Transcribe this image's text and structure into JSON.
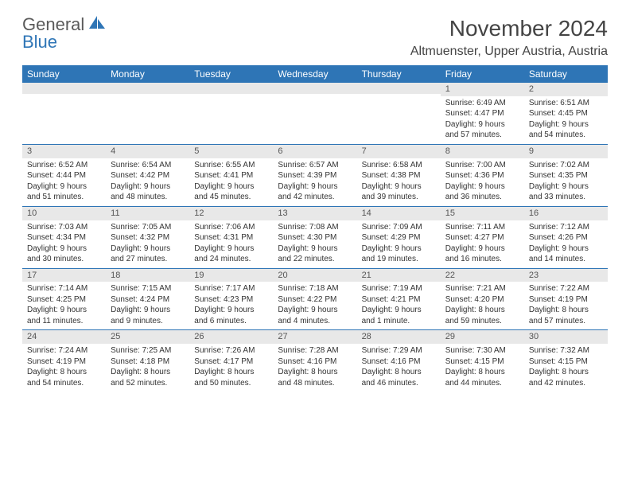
{
  "logo": {
    "top": "General",
    "bottom": "Blue",
    "shape_color": "#2e75b6"
  },
  "title": "November 2024",
  "location": "Altmuenster, Upper Austria, Austria",
  "colors": {
    "header_bg": "#2e75b6",
    "header_fg": "#ffffff",
    "daybar_bg": "#e8e8e8",
    "rule": "#2e75b6",
    "text": "#333333"
  },
  "weekdays": [
    "Sunday",
    "Monday",
    "Tuesday",
    "Wednesday",
    "Thursday",
    "Friday",
    "Saturday"
  ],
  "weeks": [
    [
      {
        "day": "",
        "lines": [
          "",
          "",
          "",
          ""
        ]
      },
      {
        "day": "",
        "lines": [
          "",
          "",
          "",
          ""
        ]
      },
      {
        "day": "",
        "lines": [
          "",
          "",
          "",
          ""
        ]
      },
      {
        "day": "",
        "lines": [
          "",
          "",
          "",
          ""
        ]
      },
      {
        "day": "",
        "lines": [
          "",
          "",
          "",
          ""
        ]
      },
      {
        "day": "1",
        "lines": [
          "Sunrise: 6:49 AM",
          "Sunset: 4:47 PM",
          "Daylight: 9 hours",
          "and 57 minutes."
        ]
      },
      {
        "day": "2",
        "lines": [
          "Sunrise: 6:51 AM",
          "Sunset: 4:45 PM",
          "Daylight: 9 hours",
          "and 54 minutes."
        ]
      }
    ],
    [
      {
        "day": "3",
        "lines": [
          "Sunrise: 6:52 AM",
          "Sunset: 4:44 PM",
          "Daylight: 9 hours",
          "and 51 minutes."
        ]
      },
      {
        "day": "4",
        "lines": [
          "Sunrise: 6:54 AM",
          "Sunset: 4:42 PM",
          "Daylight: 9 hours",
          "and 48 minutes."
        ]
      },
      {
        "day": "5",
        "lines": [
          "Sunrise: 6:55 AM",
          "Sunset: 4:41 PM",
          "Daylight: 9 hours",
          "and 45 minutes."
        ]
      },
      {
        "day": "6",
        "lines": [
          "Sunrise: 6:57 AM",
          "Sunset: 4:39 PM",
          "Daylight: 9 hours",
          "and 42 minutes."
        ]
      },
      {
        "day": "7",
        "lines": [
          "Sunrise: 6:58 AM",
          "Sunset: 4:38 PM",
          "Daylight: 9 hours",
          "and 39 minutes."
        ]
      },
      {
        "day": "8",
        "lines": [
          "Sunrise: 7:00 AM",
          "Sunset: 4:36 PM",
          "Daylight: 9 hours",
          "and 36 minutes."
        ]
      },
      {
        "day": "9",
        "lines": [
          "Sunrise: 7:02 AM",
          "Sunset: 4:35 PM",
          "Daylight: 9 hours",
          "and 33 minutes."
        ]
      }
    ],
    [
      {
        "day": "10",
        "lines": [
          "Sunrise: 7:03 AM",
          "Sunset: 4:34 PM",
          "Daylight: 9 hours",
          "and 30 minutes."
        ]
      },
      {
        "day": "11",
        "lines": [
          "Sunrise: 7:05 AM",
          "Sunset: 4:32 PM",
          "Daylight: 9 hours",
          "and 27 minutes."
        ]
      },
      {
        "day": "12",
        "lines": [
          "Sunrise: 7:06 AM",
          "Sunset: 4:31 PM",
          "Daylight: 9 hours",
          "and 24 minutes."
        ]
      },
      {
        "day": "13",
        "lines": [
          "Sunrise: 7:08 AM",
          "Sunset: 4:30 PM",
          "Daylight: 9 hours",
          "and 22 minutes."
        ]
      },
      {
        "day": "14",
        "lines": [
          "Sunrise: 7:09 AM",
          "Sunset: 4:29 PM",
          "Daylight: 9 hours",
          "and 19 minutes."
        ]
      },
      {
        "day": "15",
        "lines": [
          "Sunrise: 7:11 AM",
          "Sunset: 4:27 PM",
          "Daylight: 9 hours",
          "and 16 minutes."
        ]
      },
      {
        "day": "16",
        "lines": [
          "Sunrise: 7:12 AM",
          "Sunset: 4:26 PM",
          "Daylight: 9 hours",
          "and 14 minutes."
        ]
      }
    ],
    [
      {
        "day": "17",
        "lines": [
          "Sunrise: 7:14 AM",
          "Sunset: 4:25 PM",
          "Daylight: 9 hours",
          "and 11 minutes."
        ]
      },
      {
        "day": "18",
        "lines": [
          "Sunrise: 7:15 AM",
          "Sunset: 4:24 PM",
          "Daylight: 9 hours",
          "and 9 minutes."
        ]
      },
      {
        "day": "19",
        "lines": [
          "Sunrise: 7:17 AM",
          "Sunset: 4:23 PM",
          "Daylight: 9 hours",
          "and 6 minutes."
        ]
      },
      {
        "day": "20",
        "lines": [
          "Sunrise: 7:18 AM",
          "Sunset: 4:22 PM",
          "Daylight: 9 hours",
          "and 4 minutes."
        ]
      },
      {
        "day": "21",
        "lines": [
          "Sunrise: 7:19 AM",
          "Sunset: 4:21 PM",
          "Daylight: 9 hours",
          "and 1 minute."
        ]
      },
      {
        "day": "22",
        "lines": [
          "Sunrise: 7:21 AM",
          "Sunset: 4:20 PM",
          "Daylight: 8 hours",
          "and 59 minutes."
        ]
      },
      {
        "day": "23",
        "lines": [
          "Sunrise: 7:22 AM",
          "Sunset: 4:19 PM",
          "Daylight: 8 hours",
          "and 57 minutes."
        ]
      }
    ],
    [
      {
        "day": "24",
        "lines": [
          "Sunrise: 7:24 AM",
          "Sunset: 4:19 PM",
          "Daylight: 8 hours",
          "and 54 minutes."
        ]
      },
      {
        "day": "25",
        "lines": [
          "Sunrise: 7:25 AM",
          "Sunset: 4:18 PM",
          "Daylight: 8 hours",
          "and 52 minutes."
        ]
      },
      {
        "day": "26",
        "lines": [
          "Sunrise: 7:26 AM",
          "Sunset: 4:17 PM",
          "Daylight: 8 hours",
          "and 50 minutes."
        ]
      },
      {
        "day": "27",
        "lines": [
          "Sunrise: 7:28 AM",
          "Sunset: 4:16 PM",
          "Daylight: 8 hours",
          "and 48 minutes."
        ]
      },
      {
        "day": "28",
        "lines": [
          "Sunrise: 7:29 AM",
          "Sunset: 4:16 PM",
          "Daylight: 8 hours",
          "and 46 minutes."
        ]
      },
      {
        "day": "29",
        "lines": [
          "Sunrise: 7:30 AM",
          "Sunset: 4:15 PM",
          "Daylight: 8 hours",
          "and 44 minutes."
        ]
      },
      {
        "day": "30",
        "lines": [
          "Sunrise: 7:32 AM",
          "Sunset: 4:15 PM",
          "Daylight: 8 hours",
          "and 42 minutes."
        ]
      }
    ]
  ]
}
